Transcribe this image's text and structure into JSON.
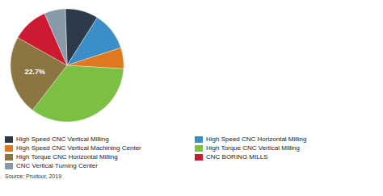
{
  "chart_data": {
    "type": "pie",
    "categories": [
      "High Speed CNC Vertical Milling",
      "High Speed CNC Horizontal Milling",
      "High Speed CNC Vertical Machining Center",
      "High Torque CNC Vertical Milling",
      "High Torque CNC Horizontal Milling",
      "CNC BORING MILLS",
      "CNC Vertical Turning Center"
    ],
    "values": [
      9.5,
      11.0,
      6.0,
      34.5,
      22.7,
      10.3,
      6.0
    ],
    "colors": [
      "#2d3a4a",
      "#3b8ec8",
      "#e07820",
      "#7bc043",
      "#8b7540",
      "#cc1a33",
      "#8899aa"
    ],
    "annotations": [
      {
        "text": "22.7%",
        "category": "High Torque CNC Horizontal Milling"
      }
    ],
    "source": "Source: Prudour, 2019",
    "legend": "bottom"
  }
}
